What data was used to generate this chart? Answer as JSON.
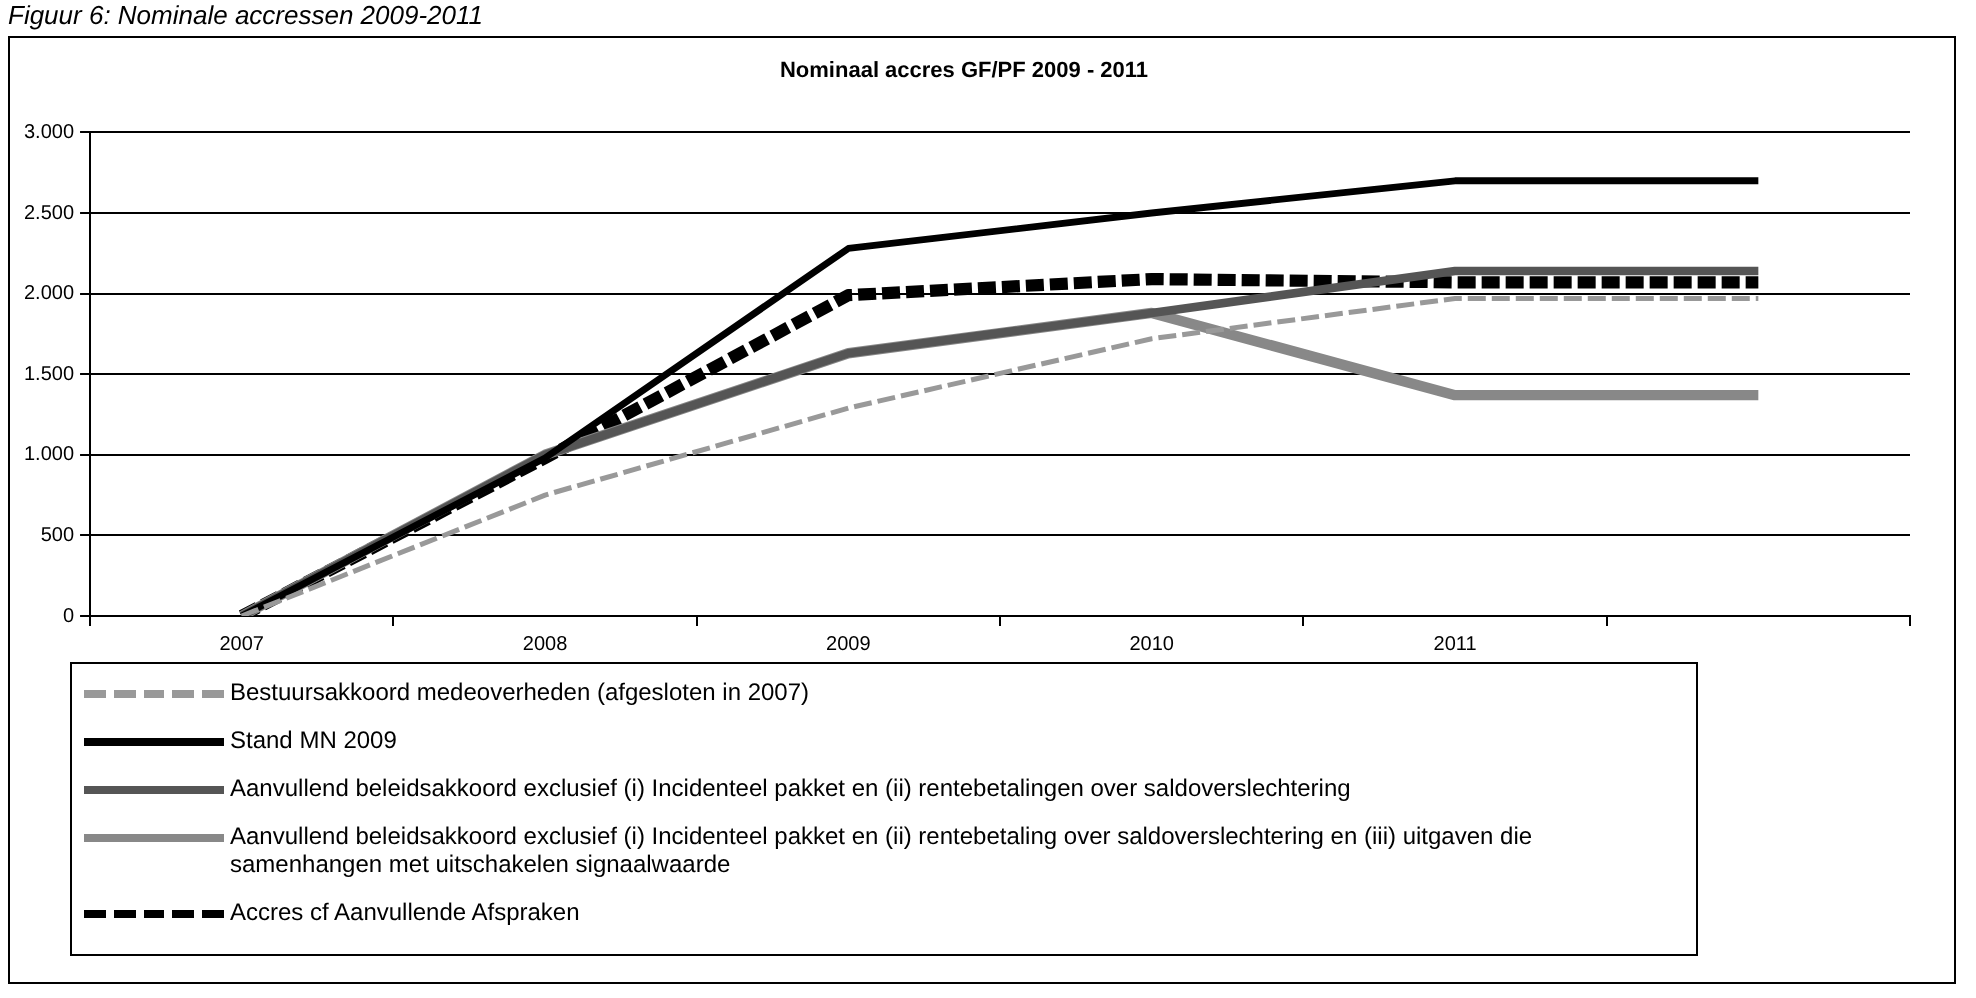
{
  "chart_data": {
    "type": "line",
    "title": "Nominaal accres GF/PF 2009 - 2011",
    "subtitle": "Figuur 6: Nominale accressen 2009-2011",
    "categories": [
      "2007",
      "2008",
      "2009",
      "2010",
      "2011",
      null
    ],
    "ylim": [
      0,
      3000
    ],
    "yticks": [
      {
        "value": 0,
        "label": "0"
      },
      {
        "value": 500,
        "label": "500"
      },
      {
        "value": 1000,
        "label": "1.000"
      },
      {
        "value": 1500,
        "label": "1.500"
      },
      {
        "value": 2000,
        "label": "2.000"
      },
      {
        "value": 2500,
        "label": "2.500"
      },
      {
        "value": 3000,
        "label": "3.000"
      }
    ],
    "grid": "y",
    "legend": "bottom",
    "marker": "none",
    "series": [
      {
        "name": "Bestuursakkoord medeoverheden (afgesloten in 2007)",
        "color": "#999999",
        "line_style": "dashed",
        "values": [
          0,
          750,
          1290,
          1720,
          1970,
          1970
        ]
      },
      {
        "name": "Stand MN 2009",
        "color": "#000000",
        "line_style": "solid",
        "values": [
          0,
          980,
          2280,
          2500,
          2700,
          2700
        ]
      },
      {
        "name": "Aanvullend beleidsakkoord exclusief (i) Incidenteel pakket en (ii) rentebetalingen over saldoverslechtering",
        "color": "#555555",
        "line_style": "solid",
        "values": [
          0,
          1000,
          1630,
          1880,
          2140,
          2140
        ]
      },
      {
        "name": "Aanvullend beleidsakkoord exclusief (i) Incidenteel pakket en (ii) rentebetaling over saldoverslechtering en (iii) uitgaven die samenhangen met uitschakelen signaalwaarde",
        "color": "#888888",
        "line_style": "solid",
        "values": [
          0,
          1000,
          1630,
          1880,
          1370,
          1370
        ]
      },
      {
        "name": "Accres cf Aanvullende Afspraken",
        "color": "#000000",
        "line_style": "dashed",
        "values": [
          0,
          980,
          1990,
          2090,
          2070,
          2070
        ]
      }
    ]
  }
}
